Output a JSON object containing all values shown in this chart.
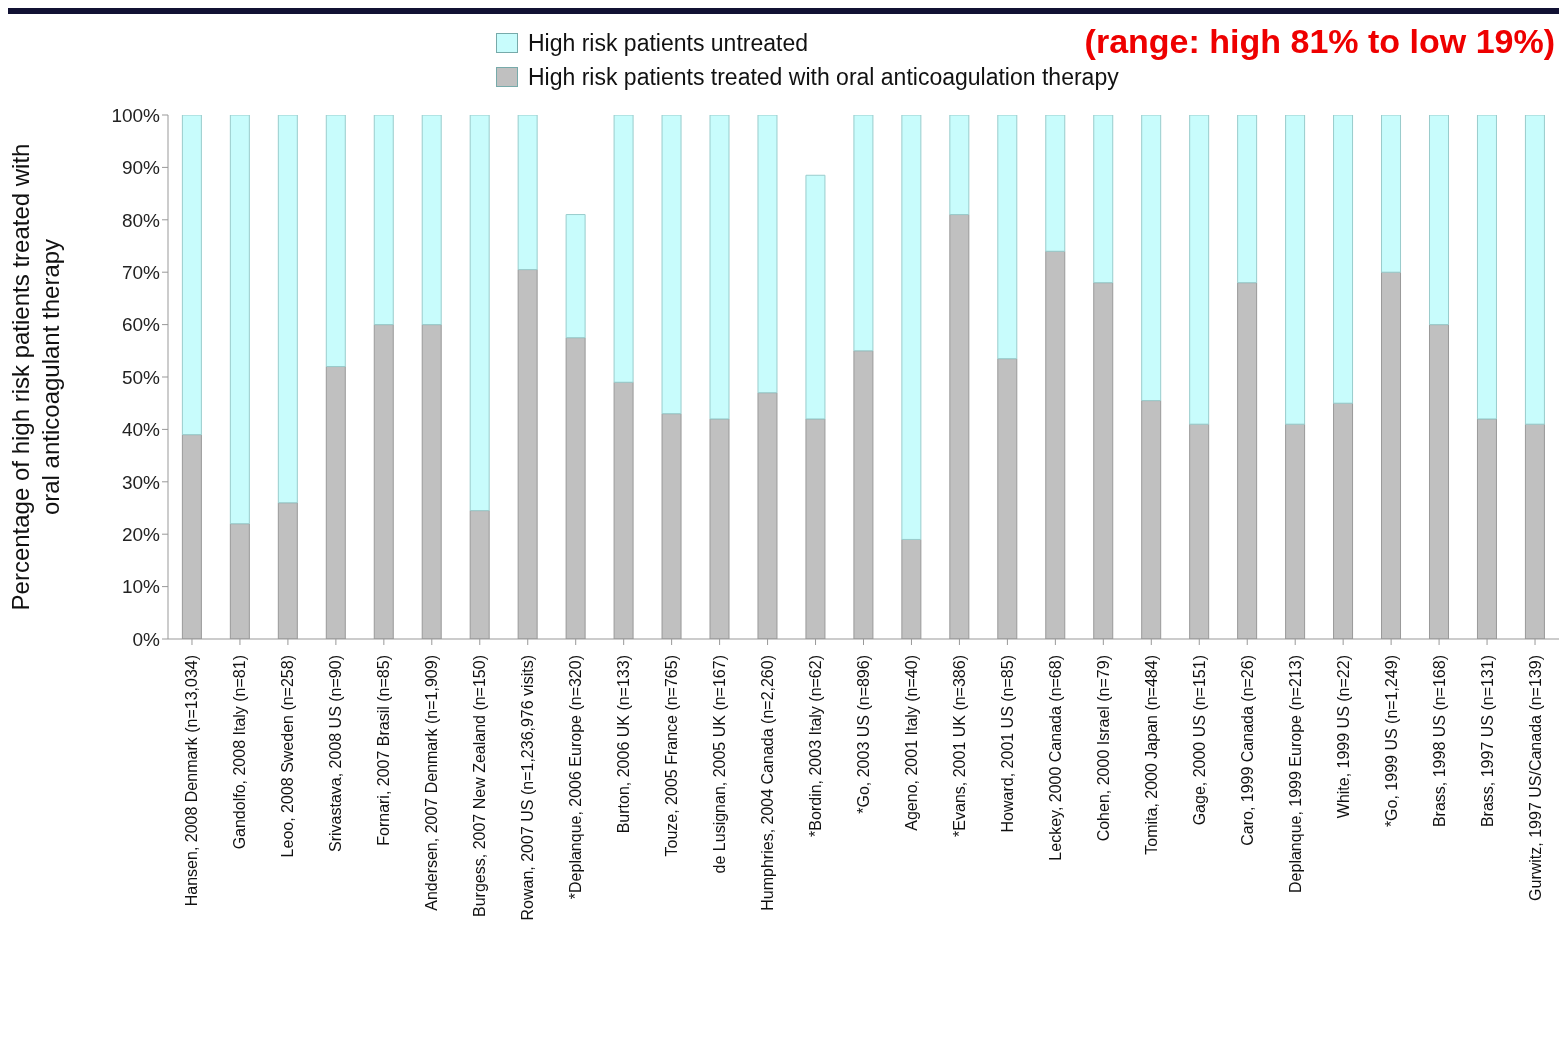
{
  "chart_data": {
    "type": "bar",
    "stacked": true,
    "ylabel": "Percentage of high risk patients treated with oral anticoagulant therapy",
    "annotations": [
      "(range: high 81% to low 19%)"
    ],
    "categories": [
      "Hansen, 2008 Denmark (n=13,034)",
      "Gandolfo, 2008 Italy (n=81)",
      "Leoo, 2008 Sweden (n=258)",
      "Srivastava, 2008 US (n=90)",
      "Fornari, 2007 Brasil (n=85)",
      "Andersen, 2007 Denmark (n=1,909)",
      "Burgess, 2007 New Zealand (n=150)",
      "Rowan, 2007 US (n=1,236,976 visits)",
      "*Deplanque, 2006 Europe (n=320)",
      "Burton, 2006 UK (n=133)",
      "Touze, 2005 France (n=765)",
      "de Lusignan, 2005 UK (n=167)",
      "Humphries, 2004 Canada (n=2,260)",
      "*Bordin, 2003 Italy (n=62)",
      "*Go, 2003 US (n=896)",
      "Ageno, 2001 Italy (n=40)",
      "*Evans, 2001 UK (n=386)",
      "Howard, 2001 US (n=85)",
      "Leckey, 2000 Canada (n=68)",
      "Cohen, 2000 Israel (n=79)",
      "Tomita, 2000 Japan (n=484)",
      "Gage, 2000 US (n=151)",
      "Caro, 1999 Canada (n=26)",
      "Deplanque, 1999 Europe (n=213)",
      "White, 1999 US (n=22)",
      "*Go, 1999 US (n=1,249)",
      "Brass, 1998 US (n=168)",
      "Brass, 1997 US (n=131)",
      "Gurwitz, 1997 US/Canada (n=139)"
    ],
    "series": [
      {
        "name": "High risk patients treated with oral anticoagulation therapy",
        "color": "#c0c0c0",
        "values": [
          39,
          22,
          26,
          52,
          60,
          60,
          24.5,
          70.5,
          57.5,
          49,
          43,
          42,
          47,
          42,
          55,
          19,
          81,
          53.5,
          74,
          68,
          45.5,
          41,
          68,
          41,
          45,
          70,
          60,
          42,
          41
        ]
      },
      {
        "name": "High risk patients untreated",
        "color": "#c8fcfc",
        "values": [
          61,
          78,
          74,
          48,
          40,
          40,
          75.5,
          29.5,
          23.5,
          51,
          57,
          58,
          53,
          46.5,
          45,
          81,
          19,
          46.5,
          26,
          32,
          54.5,
          59,
          32,
          59,
          55,
          30,
          40,
          58,
          59
        ]
      }
    ],
    "ylim": [
      0,
      100
    ],
    "yticks": [
      {
        "value": 0,
        "label": "0%"
      },
      {
        "value": 10,
        "label": "10%"
      },
      {
        "value": 20,
        "label": "20%"
      },
      {
        "value": 30,
        "label": "30%"
      },
      {
        "value": 40,
        "label": "40%"
      },
      {
        "value": 50,
        "label": "50%"
      },
      {
        "value": 60,
        "label": "60%"
      },
      {
        "value": 70,
        "label": "70%"
      },
      {
        "value": 80,
        "label": "80%"
      },
      {
        "value": 90,
        "label": "90%"
      },
      {
        "value": 100,
        "label": "100%"
      }
    ],
    "legend": "top",
    "grid": false
  }
}
